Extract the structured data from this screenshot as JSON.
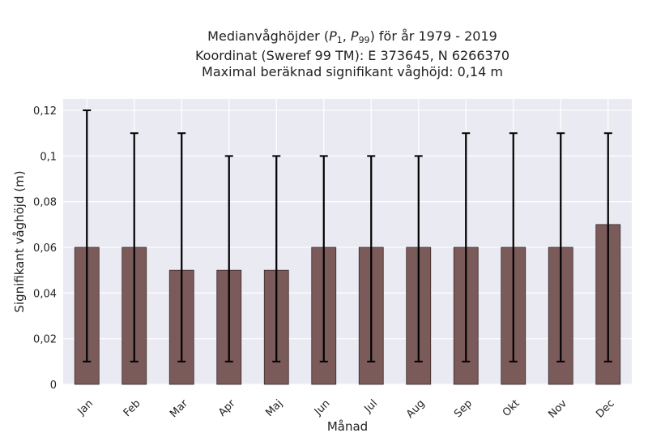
{
  "title": {
    "line1_prefix": "Medianvåghöjder (",
    "p1_letter": "P",
    "p1_sub": "1",
    "separator": ", ",
    "p99_letter": "P",
    "p99_sub": "99",
    "line1_suffix": ") för år 1979 - 2019",
    "line2": "Koordinat (Sweref 99 TM): E 373645, N 6266370",
    "line3": "Maximal beräknad signifikant våghöjd: 0,14 m"
  },
  "chart_data": {
    "type": "bar",
    "categories": [
      "Jan",
      "Feb",
      "Mar",
      "Apr",
      "Maj",
      "Jun",
      "Jul",
      "Aug",
      "Sep",
      "Okt",
      "Nov",
      "Dec"
    ],
    "values": [
      0.06,
      0.06,
      0.05,
      0.05,
      0.05,
      0.06,
      0.06,
      0.06,
      0.06,
      0.06,
      0.06,
      0.07
    ],
    "error_low": [
      0.01,
      0.01,
      0.01,
      0.01,
      0.01,
      0.01,
      0.01,
      0.01,
      0.01,
      0.01,
      0.01,
      0.01
    ],
    "error_high": [
      0.12,
      0.11,
      0.11,
      0.1,
      0.1,
      0.1,
      0.1,
      0.1,
      0.11,
      0.11,
      0.11,
      0.11
    ],
    "xlabel": "Månad",
    "ylabel": "Signifikant våghöjd (m)",
    "ylim": [
      0,
      0.125
    ],
    "yticks": [
      0,
      0.02,
      0.04,
      0.06,
      0.08,
      0.1,
      0.12
    ],
    "ytick_labels": [
      "0",
      "0,02",
      "0,04",
      "0,06",
      "0,08",
      "0,1",
      "0,12"
    ],
    "grid": true,
    "colors": {
      "bar": "#7b5a5a",
      "bar_edge": "#3a2a2a",
      "error": "#000000",
      "background": "#eaeaf2",
      "grid": "#ffffff"
    }
  }
}
